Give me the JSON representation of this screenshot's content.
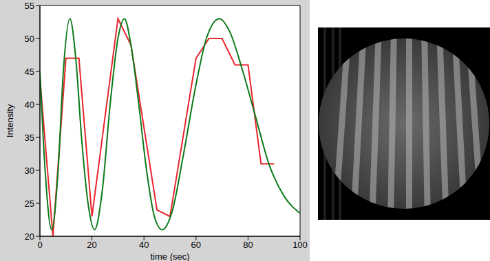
{
  "chart_data": {
    "type": "line",
    "xlabel": "time (sec)",
    "ylabel": "Intensity",
    "xlim": [
      0,
      100
    ],
    "xticks": [
      0,
      20,
      40,
      60,
      80,
      100
    ],
    "ylim": [
      20,
      55
    ],
    "yticks": [
      20,
      25,
      30,
      35,
      40,
      45,
      50,
      55
    ],
    "grid": false,
    "series": [
      {
        "type": "line",
        "color": "#e8262e",
        "x": [
          0,
          5,
          10,
          15,
          20,
          30,
          35,
          45,
          50,
          60,
          65,
          70,
          75,
          80,
          85,
          90
        ],
        "values": [
          44,
          20,
          47,
          47,
          23,
          53,
          49,
          24,
          23,
          47,
          50,
          50,
          46,
          46,
          31,
          31
        ]
      },
      {
        "type": "spline",
        "color": "#0b7a1a",
        "x": [
          0,
          2,
          4.5,
          7,
          9,
          11.5,
          14,
          16,
          18.5,
          21,
          24,
          27,
          30,
          32.5,
          35,
          38,
          41,
          44,
          47,
          51,
          55,
          60,
          64,
          69,
          73,
          78,
          83,
          88,
          94,
          100
        ],
        "values": [
          45,
          30,
          21,
          30,
          45,
          53,
          46,
          35,
          25,
          21,
          27,
          40,
          50,
          53,
          49,
          40,
          30,
          23,
          21,
          24,
          32,
          43,
          50,
          53,
          51,
          45,
          38,
          31,
          26,
          23.5
        ]
      }
    ]
  }
}
